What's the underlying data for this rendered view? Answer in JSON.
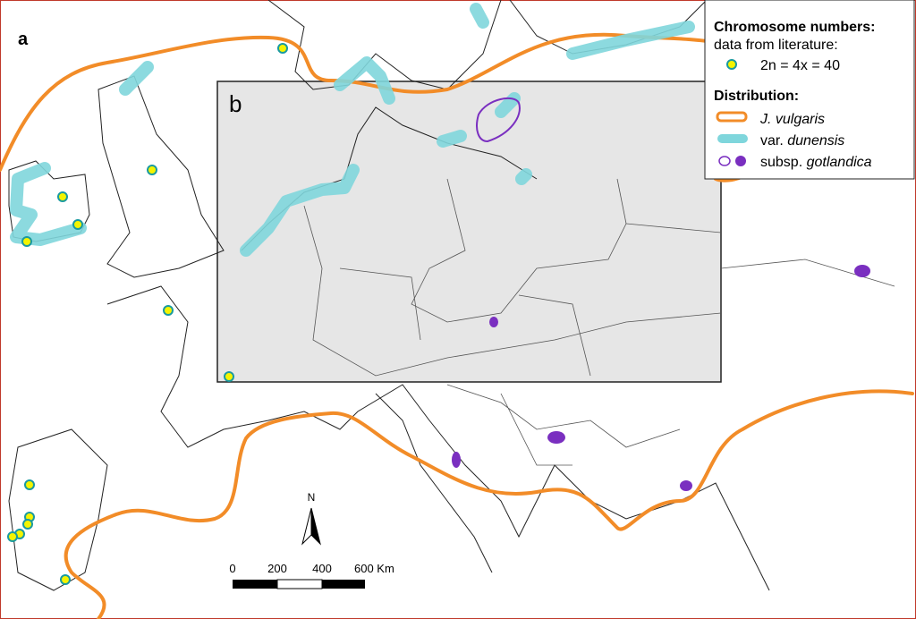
{
  "panels": {
    "a": "a",
    "b": "b"
  },
  "legend": {
    "heading1": "Chromosome numbers:",
    "heading1_sub": "data from literature:",
    "points": "2n = 4x = 40",
    "heading2": "Distribution:",
    "items": [
      {
        "name": "J. vulgaris"
      },
      {
        "prefix": "var.",
        "name": "dunensis"
      },
      {
        "prefix": "subsp.",
        "name": "gotlandica"
      }
    ]
  },
  "north": "N",
  "scale": [
    "0",
    "200",
    "400",
    "600 Km"
  ]
}
